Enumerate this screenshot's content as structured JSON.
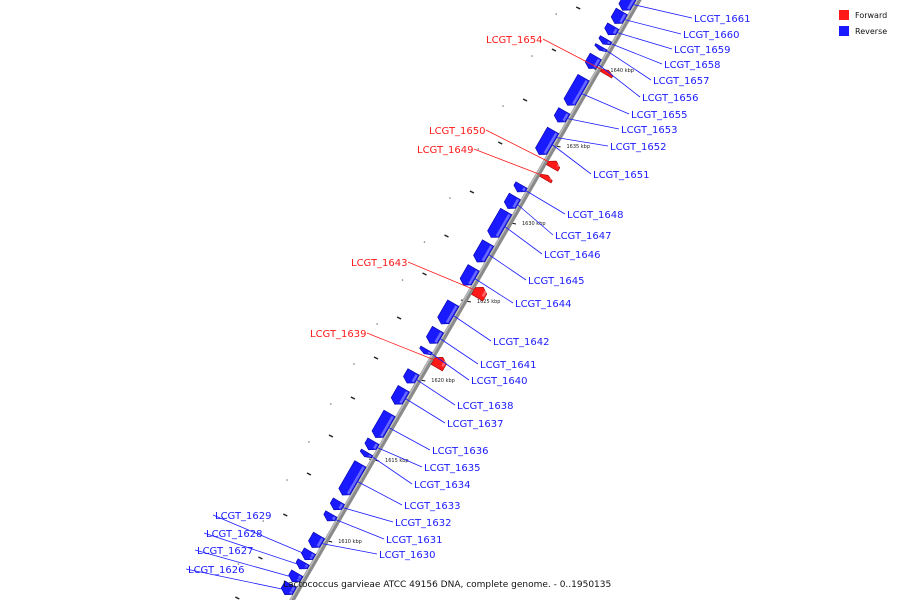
{
  "diagram": {
    "caption": "Lactococcus garvieae ATCC 49156 DNA, complete genome. - 0..1950135",
    "legend": [
      {
        "label": "Forward",
        "color": "#ff1a1a"
      },
      {
        "label": "Reverse",
        "color": "#1a1aff"
      }
    ],
    "ticks": [
      {
        "label": "1640 kbp",
        "pos_kbp": 1640
      },
      {
        "label": "1635 kbp",
        "pos_kbp": 1635
      },
      {
        "label": "1630 kbp",
        "pos_kbp": 1630
      },
      {
        "label": "1625 kbp",
        "pos_kbp": 1625
      },
      {
        "label": "1620 kbp",
        "pos_kbp": 1620
      },
      {
        "label": "1615 kbp",
        "pos_kbp": 1615
      },
      {
        "label": "1610 kbp",
        "pos_kbp": 1610
      }
    ],
    "genes": [
      {
        "name": "LCGT_1661",
        "strand": "reverse"
      },
      {
        "name": "LCGT_1660",
        "strand": "reverse"
      },
      {
        "name": "LCGT_1659",
        "strand": "reverse"
      },
      {
        "name": "LCGT_1658",
        "strand": "reverse"
      },
      {
        "name": "LCGT_1657",
        "strand": "reverse"
      },
      {
        "name": "LCGT_1656",
        "strand": "reverse"
      },
      {
        "name": "LCGT_1655",
        "strand": "reverse"
      },
      {
        "name": "LCGT_1654",
        "strand": "forward"
      },
      {
        "name": "LCGT_1653",
        "strand": "reverse"
      },
      {
        "name": "LCGT_1652",
        "strand": "reverse"
      },
      {
        "name": "LCGT_1651",
        "strand": "reverse"
      },
      {
        "name": "LCGT_1650",
        "strand": "forward"
      },
      {
        "name": "LCGT_1649",
        "strand": "forward"
      },
      {
        "name": "LCGT_1648",
        "strand": "reverse"
      },
      {
        "name": "LCGT_1647",
        "strand": "reverse"
      },
      {
        "name": "LCGT_1646",
        "strand": "reverse"
      },
      {
        "name": "LCGT_1645",
        "strand": "reverse"
      },
      {
        "name": "LCGT_1644",
        "strand": "reverse"
      },
      {
        "name": "LCGT_1643",
        "strand": "forward"
      },
      {
        "name": "LCGT_1642",
        "strand": "reverse"
      },
      {
        "name": "LCGT_1641",
        "strand": "reverse"
      },
      {
        "name": "LCGT_1640",
        "strand": "reverse"
      },
      {
        "name": "LCGT_1639",
        "strand": "forward"
      },
      {
        "name": "LCGT_1638",
        "strand": "reverse"
      },
      {
        "name": "LCGT_1637",
        "strand": "reverse"
      },
      {
        "name": "LCGT_1636",
        "strand": "reverse"
      },
      {
        "name": "LCGT_1635",
        "strand": "reverse"
      },
      {
        "name": "LCGT_1634",
        "strand": "reverse"
      },
      {
        "name": "LCGT_1633",
        "strand": "reverse"
      },
      {
        "name": "LCGT_1632",
        "strand": "reverse"
      },
      {
        "name": "LCGT_1631",
        "strand": "reverse"
      },
      {
        "name": "LCGT_1630",
        "strand": "reverse"
      },
      {
        "name": "LCGT_1629",
        "strand": "reverse"
      },
      {
        "name": "LCGT_1628",
        "strand": "reverse"
      },
      {
        "name": "LCGT_1627",
        "strand": "reverse"
      },
      {
        "name": "LCGT_1626",
        "strand": "reverse"
      }
    ]
  }
}
